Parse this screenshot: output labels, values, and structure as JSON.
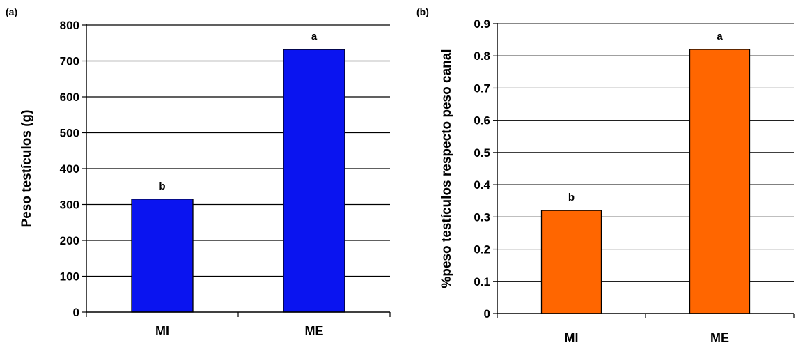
{
  "chart_data": [
    {
      "type": "bar",
      "panel_label": "(a)",
      "categories": [
        "MI",
        "ME"
      ],
      "values": [
        315,
        732
      ],
      "data_labels": [
        "b",
        "a"
      ],
      "ylabel": "Peso testículos (g)",
      "ylim": [
        0,
        800
      ],
      "yticks": [
        "0",
        "100",
        "200",
        "300",
        "400",
        "500",
        "600",
        "700",
        "800"
      ],
      "grid": true,
      "color": "#0A14F0"
    },
    {
      "type": "bar",
      "panel_label": "(b)",
      "categories": [
        "MI",
        "ME"
      ],
      "values": [
        0.32,
        0.82
      ],
      "data_labels": [
        "b",
        "a"
      ],
      "ylabel": "%peso testículos respecto peso canal",
      "ylim": [
        0,
        0.9
      ],
      "yticks": [
        "0",
        "0.1",
        "0.2",
        "0.3",
        "0.4",
        "0.5",
        "0.6",
        "0.7",
        "0.8",
        "0.9"
      ],
      "grid": true,
      "color": "#FF6600"
    }
  ]
}
